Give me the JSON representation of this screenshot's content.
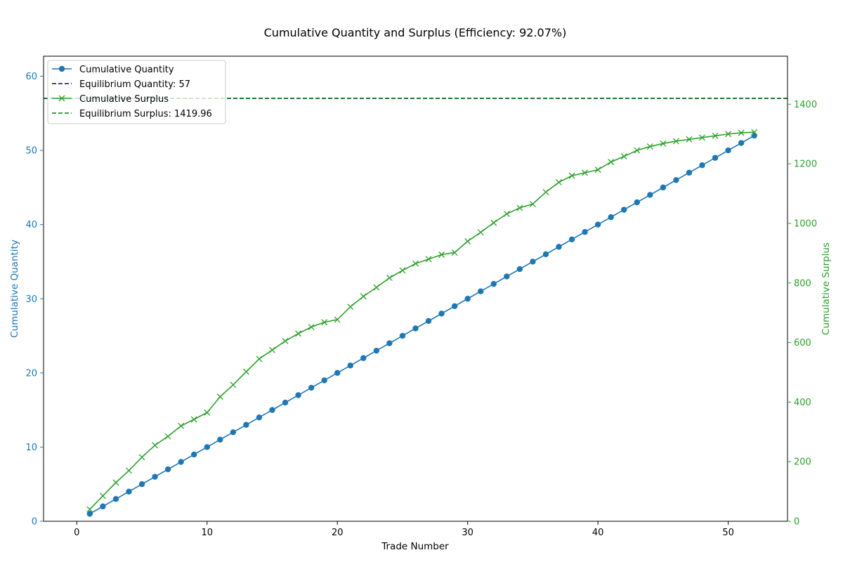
{
  "chart_data": {
    "type": "line",
    "title": "Cumulative Quantity and Surplus (Efficiency: 92.07%)",
    "xlabel": "Trade Number",
    "ylabel_left": "Cumulative Quantity",
    "ylabel_right": "Cumulative Surplus",
    "xlim": [
      -2.55,
      54.55
    ],
    "ylim_left": [
      0,
      62.7
    ],
    "ylim_right": [
      0,
      1561.2
    ],
    "x_ticks": [
      0,
      10,
      20,
      30,
      40,
      50
    ],
    "y_ticks_left": [
      0,
      10,
      20,
      30,
      40,
      50,
      60
    ],
    "y_ticks_right": [
      0,
      200,
      400,
      600,
      800,
      1000,
      1200,
      1400
    ],
    "grid": false,
    "legend_position": "upper-left",
    "colors": {
      "quantity": "#1f77b4",
      "surplus": "#2ca02c",
      "eq_quantity": "#00008b",
      "eq_surplus": "#008000"
    },
    "x": [
      1,
      2,
      3,
      4,
      5,
      6,
      7,
      8,
      9,
      10,
      11,
      12,
      13,
      14,
      15,
      16,
      17,
      18,
      19,
      20,
      21,
      22,
      23,
      24,
      25,
      26,
      27,
      28,
      29,
      30,
      31,
      32,
      33,
      34,
      35,
      36,
      37,
      38,
      39,
      40,
      41,
      42,
      43,
      44,
      45,
      46,
      47,
      48,
      49,
      50,
      51,
      52
    ],
    "series": [
      {
        "name": "Cumulative Quantity",
        "axis": "left",
        "marker": "circle",
        "values": [
          1,
          2,
          3,
          4,
          5,
          6,
          7,
          8,
          9,
          10,
          11,
          12,
          13,
          14,
          15,
          16,
          17,
          18,
          19,
          20,
          21,
          22,
          23,
          24,
          25,
          26,
          27,
          28,
          29,
          30,
          31,
          32,
          33,
          34,
          35,
          36,
          37,
          38,
          39,
          40,
          41,
          42,
          43,
          44,
          45,
          46,
          47,
          48,
          49,
          50,
          51,
          52
        ]
      },
      {
        "name": "Cumulative Surplus",
        "axis": "right",
        "marker": "x",
        "values": [
          40,
          85,
          130,
          170,
          215,
          255,
          285,
          320,
          342,
          365,
          418,
          458,
          502,
          545,
          575,
          605,
          630,
          652,
          668,
          677,
          720,
          755,
          785,
          817,
          842,
          865,
          880,
          895,
          902,
          940,
          970,
          1002,
          1032,
          1052,
          1065,
          1105,
          1138,
          1160,
          1170,
          1180,
          1206,
          1225,
          1245,
          1258,
          1268,
          1276,
          1282,
          1288,
          1294,
          1300,
          1304,
          1306
        ]
      }
    ],
    "reference_lines": [
      {
        "name": "Equilibrium Quantity: 57",
        "axis": "left",
        "value": 57,
        "style": "dashed"
      },
      {
        "name": "Equilibrium Surplus: 1419.96",
        "axis": "right",
        "value": 1419.96,
        "style": "dashed"
      }
    ]
  }
}
